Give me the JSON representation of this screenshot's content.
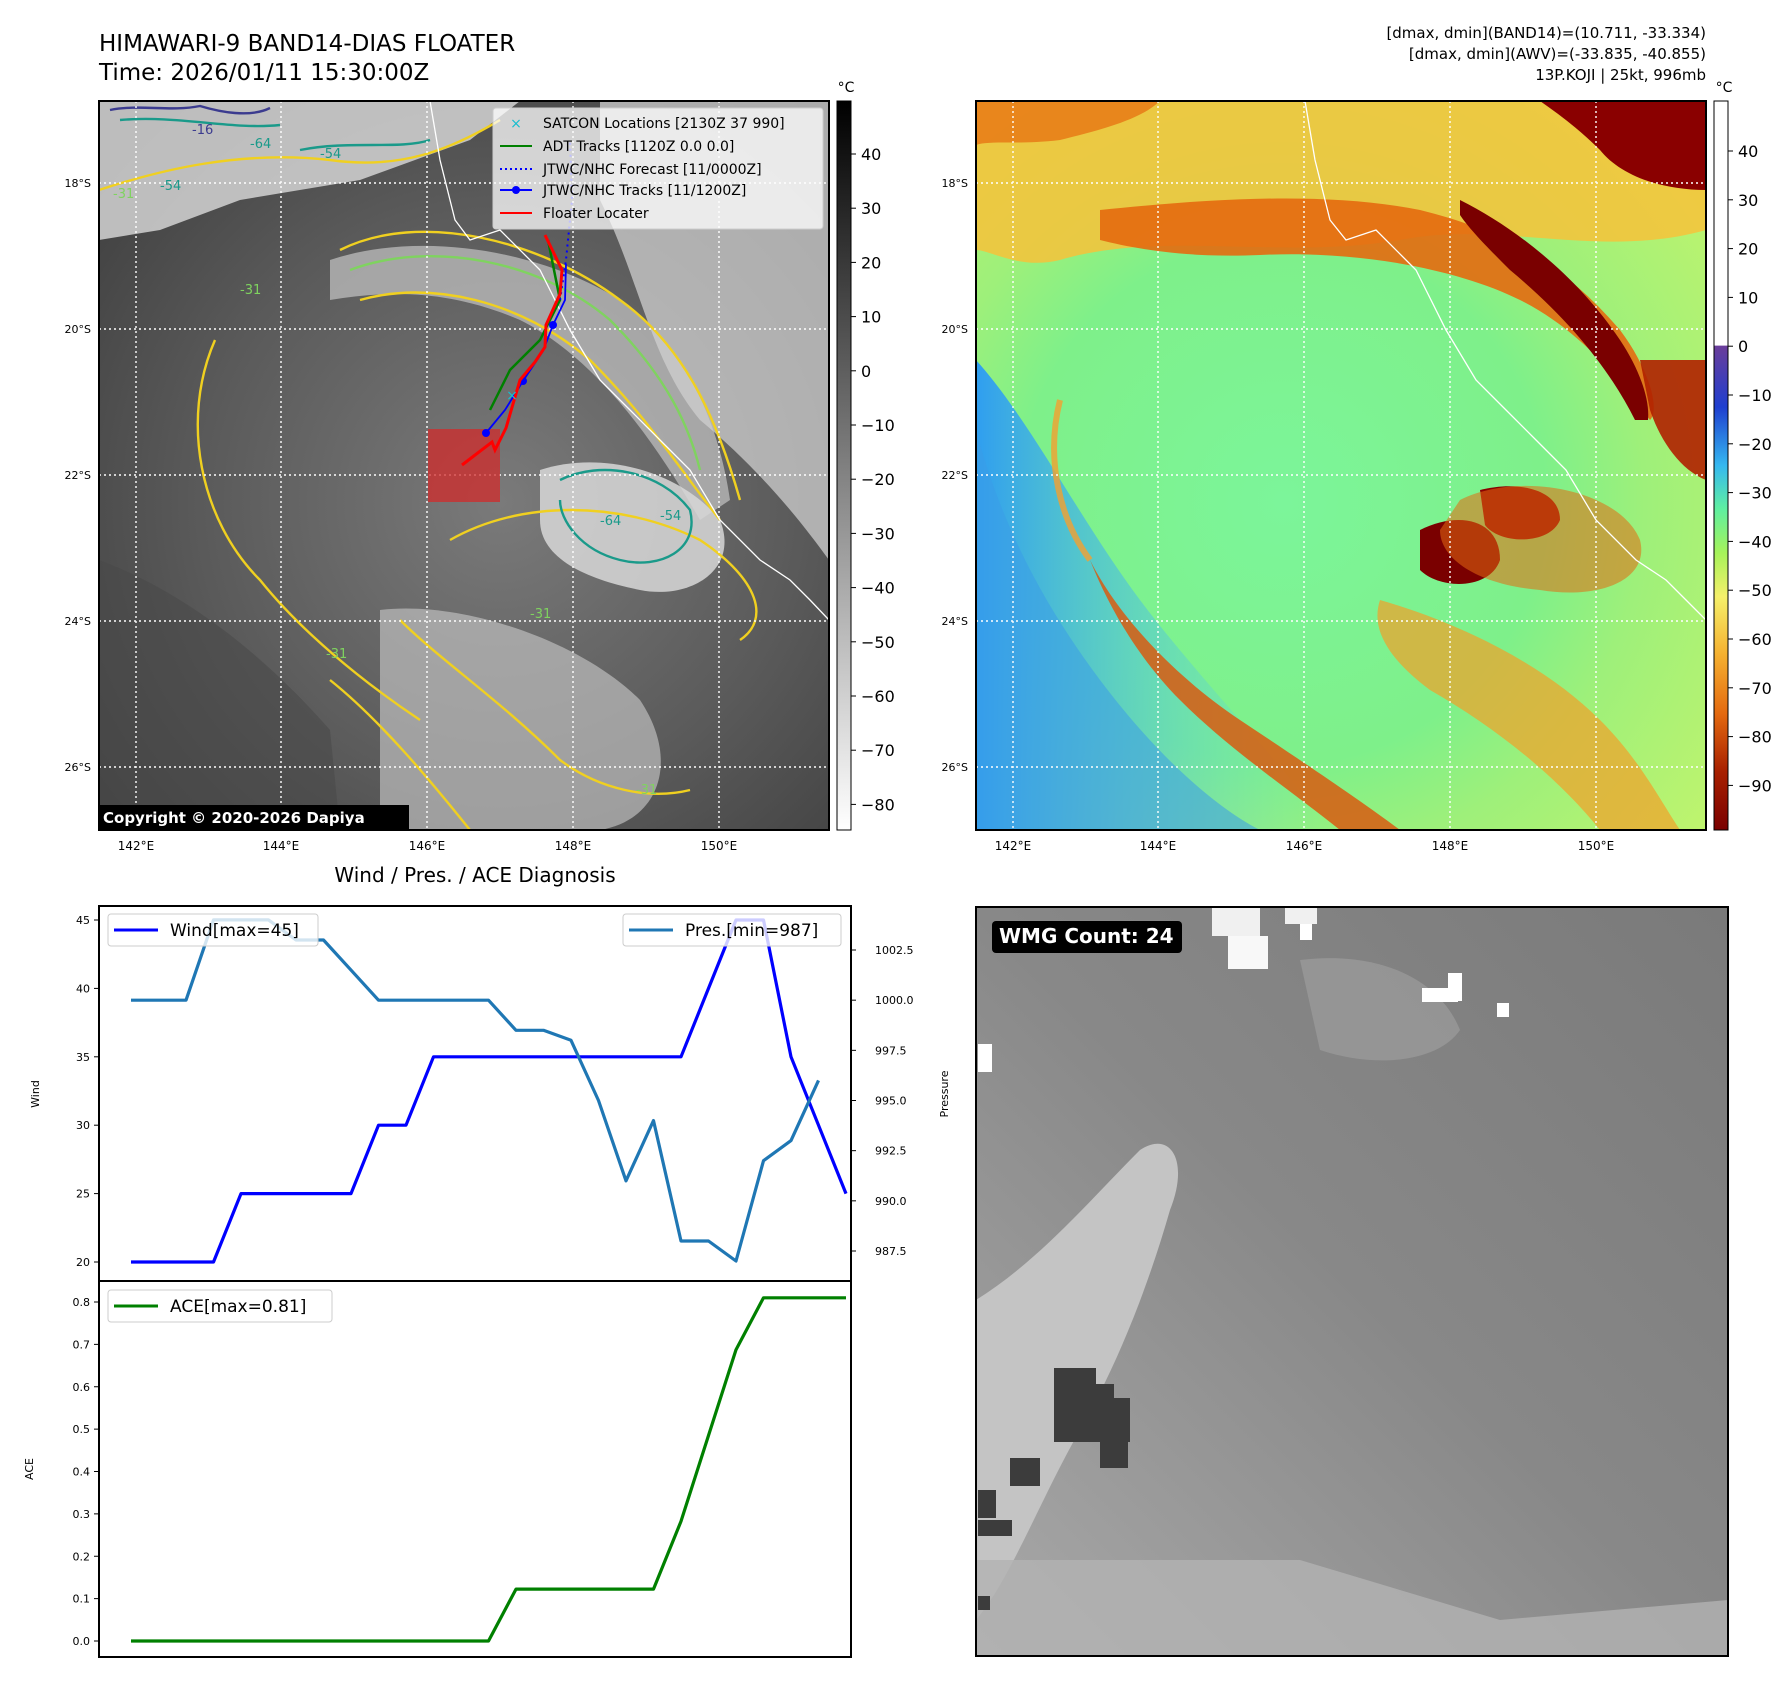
{
  "header": {
    "title": "HIMAWARI-9 BAND14-DIAS FLOATER",
    "time": "Time: 2026/01/11 15:30:00Z",
    "info": [
      "[dmax, dmin](BAND14)=(10.711, -33.334)",
      "[dmax, dmin](AWV)=(-33.835, -40.855)",
      "13P.KOJI | 25kt, 996mb"
    ]
  },
  "maps": {
    "lat_labels": [
      "18°S",
      "20°S",
      "22°S",
      "24°S",
      "26°S"
    ],
    "lon_labels": [
      "142°E",
      "144°E",
      "146°E",
      "148°E",
      "150°E"
    ],
    "copyright": "Copyright © 2020-2026 Dapiya",
    "colorbar_unit": "°C",
    "left_colorbar_ticks": [
      "40",
      "30",
      "20",
      "10",
      "0",
      "−10",
      "−20",
      "−30",
      "−40",
      "−50",
      "−60",
      "−70",
      "−80"
    ],
    "right_colorbar_ticks": [
      "40",
      "30",
      "20",
      "10",
      "0",
      "−10",
      "−20",
      "−30",
      "−40",
      "−50",
      "−60",
      "−70",
      "−80",
      "−90"
    ],
    "legend": [
      {
        "label": "SATCON Locations [2130Z 37 990]",
        "kind": "x",
        "color": "#17becf"
      },
      {
        "label": "ADT Tracks [1120Z 0.0 0.0]",
        "kind": "line",
        "color": "#008000"
      },
      {
        "label": "JTWC/NHC Forecast [11/0000Z]",
        "kind": "dotted",
        "color": "#0000ff"
      },
      {
        "label": "JTWC/NHC Tracks [11/1200Z]",
        "kind": "dot-line",
        "color": "#0000ff"
      },
      {
        "label": "Floater Locater",
        "kind": "line",
        "color": "#ff0000"
      }
    ],
    "contour_labels": [
      "-16",
      "-64",
      "-54",
      "-31",
      "-54",
      "-31",
      "-54",
      "-31",
      "-31",
      "-31",
      "-64"
    ]
  },
  "diag": {
    "title": "Wind / Pres. / ACE Diagnosis",
    "wind_ylabel": "Wind",
    "pres_ylabel": "Pressure",
    "ace_ylabel": "ACE",
    "wind_ticks": [
      "45",
      "40",
      "35",
      "30",
      "25",
      "20"
    ],
    "pres_ticks": [
      "1002.5",
      "1000.0",
      "997.5",
      "995.0",
      "992.5",
      "990.0",
      "987.5"
    ],
    "ace_ticks": [
      "0.8",
      "0.7",
      "0.6",
      "0.5",
      "0.4",
      "0.3",
      "0.2",
      "0.1",
      "0.0"
    ],
    "wmg": "WMG Count: 24"
  },
  "chart_data": [
    {
      "type": "line",
      "title": "Wind / Pres. / ACE Diagnosis",
      "ylabel": "Wind",
      "ylim": [
        19.5,
        46
      ],
      "series": [
        {
          "name": "Wind[max=45]",
          "color": "#0000ff",
          "values": [
            20,
            20,
            20,
            20,
            25,
            25,
            25,
            25,
            25,
            30,
            30,
            35,
            35,
            35,
            35,
            35,
            35,
            35,
            35,
            35,
            35,
            40,
            45,
            45,
            35,
            30,
            25
          ]
        },
        {
          "name": "Pres.[min=987]",
          "color": "#1f77b4",
          "axis": "right",
          "ylim": [
            986.3,
            1004.9
          ],
          "values": [
            1000.0,
            1000.0,
            1000.0,
            1004.0,
            1004.0,
            1004.0,
            1003.0,
            1003.0,
            1001.5,
            1000.0,
            1000.0,
            1000.0,
            1000.0,
            1000.0,
            998.5,
            998.5,
            998.0,
            995.0,
            991.0,
            994.0,
            988.0,
            988.0,
            987.0,
            992.0,
            993.0,
            996.0
          ]
        }
      ]
    },
    {
      "type": "line",
      "ylabel": "ACE",
      "ylim": [
        -0.035,
        0.83
      ],
      "series": [
        {
          "name": "ACE[max=0.81]",
          "color": "#008000",
          "values": [
            0,
            0,
            0,
            0,
            0,
            0,
            0,
            0,
            0,
            0,
            0,
            0,
            0,
            0,
            0.1225,
            0.1225,
            0.1225,
            0.1225,
            0.1225,
            0.1225,
            0.2825,
            0.485,
            0.6875,
            0.81,
            0.81,
            0.81,
            0.81
          ]
        }
      ]
    }
  ]
}
